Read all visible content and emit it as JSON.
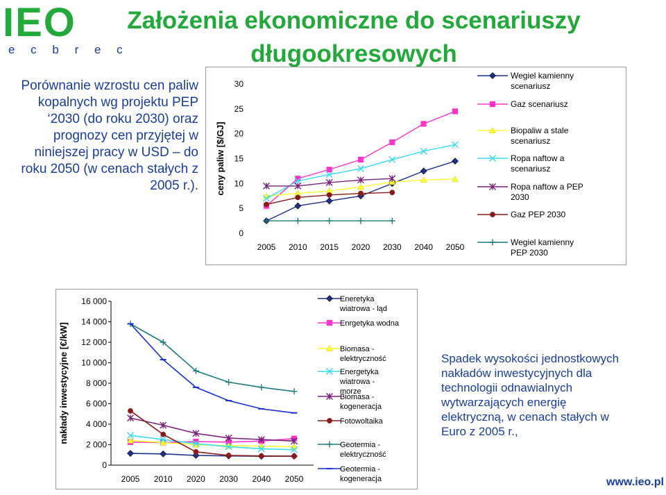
{
  "header": {
    "logo_main": "IEO",
    "logo_sub": "e c b r e c",
    "title_line1": "Założenia ekonomiczne do scenariuszy",
    "title_line2": "długookresowych"
  },
  "left_text": "Porównanie wzrostu cen paliw kopalnych wg projektu PEP ‘2030 (do roku 2030) oraz prognozy cen przyjętej w niniejszej pracy w USD – do roku 2050 (w cenach stałych z 2005 r.).",
  "right_text": "Spadek wysokości jednostkowych nakładów inwestycyjnych dla technologii odnawialnych wytwarzających energię elektryczną, w cenach stałych w Euro z 2005 r.,",
  "footer_url": "www.ieo.pl",
  "chart_data": [
    {
      "type": "line",
      "title": "",
      "xlabel": "",
      "ylabel": "ceny paliw [$/GJ]",
      "ylim": [
        0,
        30
      ],
      "yticks": [
        "0",
        "5",
        "10",
        "15",
        "20",
        "25",
        "30"
      ],
      "categories": [
        "2005",
        "2010",
        "2015",
        "2020",
        "2030",
        "2040",
        "2050"
      ],
      "grid": false,
      "legend": "right",
      "series": [
        {
          "name": "Wegiel kamienny scenariusz",
          "color": "#1f2f8c",
          "marker": "diamond",
          "values": [
            2.5,
            5.5,
            6.5,
            7.5,
            10.0,
            12.5,
            14.5
          ]
        },
        {
          "name": "Gaz scenariusz",
          "color": "#ff33cc",
          "marker": "square",
          "values": [
            5.5,
            11.0,
            12.8,
            14.8,
            18.3,
            22.0,
            24.5
          ]
        },
        {
          "name": "Biopaliw a stale scenariusz",
          "color": "#ffff33",
          "marker": "triangle",
          "values": [
            7.5,
            8.0,
            8.5,
            9.3,
            10.3,
            10.7,
            10.9
          ]
        },
        {
          "name": "Ropa naftow a scenariusz",
          "color": "#33ddee",
          "marker": "x",
          "values": [
            7.0,
            10.5,
            11.8,
            13.0,
            14.8,
            16.5,
            17.8
          ]
        },
        {
          "name": "Ropa naftow a PEP 2030",
          "color": "#7a1f7a",
          "marker": "star",
          "values": [
            9.5,
            9.5,
            10.2,
            10.7,
            11.0,
            null,
            null
          ]
        },
        {
          "name": "Gaz PEP 2030",
          "color": "#8b1a1a",
          "marker": "circle",
          "values": [
            5.8,
            7.2,
            7.7,
            8.0,
            8.2,
            null,
            null
          ]
        },
        {
          "name": "Wegiel kamienny PEP 2030",
          "color": "#1a7a7a",
          "marker": "plus",
          "values": [
            2.5,
            2.5,
            2.5,
            2.5,
            2.5,
            null,
            null
          ]
        }
      ]
    },
    {
      "type": "line",
      "title": "",
      "xlabel": "",
      "ylabel": "nakłady inwestycyjne [€/kW]",
      "ylim": [
        0,
        16000
      ],
      "yticks": [
        "0",
        "2 000",
        "4 000",
        "6 000",
        "8 000",
        "10 000",
        "12 000",
        "14 000",
        "16 000"
      ],
      "categories": [
        "2005",
        "2010",
        "2020",
        "2030",
        "2040",
        "2050"
      ],
      "grid": false,
      "legend": "right",
      "series": [
        {
          "name": "Eneretyka wiatrowa - ląd",
          "color": "#1f2f8c",
          "marker": "diamond",
          "values": [
            1150,
            1100,
            950,
            900,
            870,
            880
          ]
        },
        {
          "name": "Enrgetyka wodna",
          "color": "#ff33cc",
          "marker": "square",
          "values": [
            2250,
            2200,
            2300,
            2250,
            2350,
            2600
          ]
        },
        {
          "name": "Biomasa - elektryczność",
          "color": "#ffff33",
          "marker": "triangle",
          "values": [
            2400,
            2200,
            2000,
            1900,
            1850,
            1800
          ]
        },
        {
          "name": "Energetyka wiatrowa - morze",
          "color": "#33ddee",
          "marker": "x",
          "values": [
            2900,
            2500,
            2100,
            1800,
            1600,
            1500
          ]
        },
        {
          "name": "Biomasa - kogeneracja",
          "color": "#7a1f7a",
          "marker": "star",
          "values": [
            4600,
            3900,
            3100,
            2650,
            2500,
            2350
          ]
        },
        {
          "name": "Fotowoltaika",
          "color": "#8b1a1a",
          "marker": "circle",
          "values": [
            5300,
            3000,
            1300,
            950,
            900,
            880
          ]
        },
        {
          "name": "Geotermia - elektryczność",
          "color": "#1a7a7a",
          "marker": "plus",
          "values": [
            13800,
            12000,
            9200,
            8100,
            7600,
            7200
          ]
        },
        {
          "name": "Geotermia - kogeneracja",
          "color": "#1a2fd6",
          "marker": "dash",
          "values": [
            13800,
            10300,
            7600,
            6300,
            5500,
            5100
          ]
        }
      ]
    }
  ]
}
